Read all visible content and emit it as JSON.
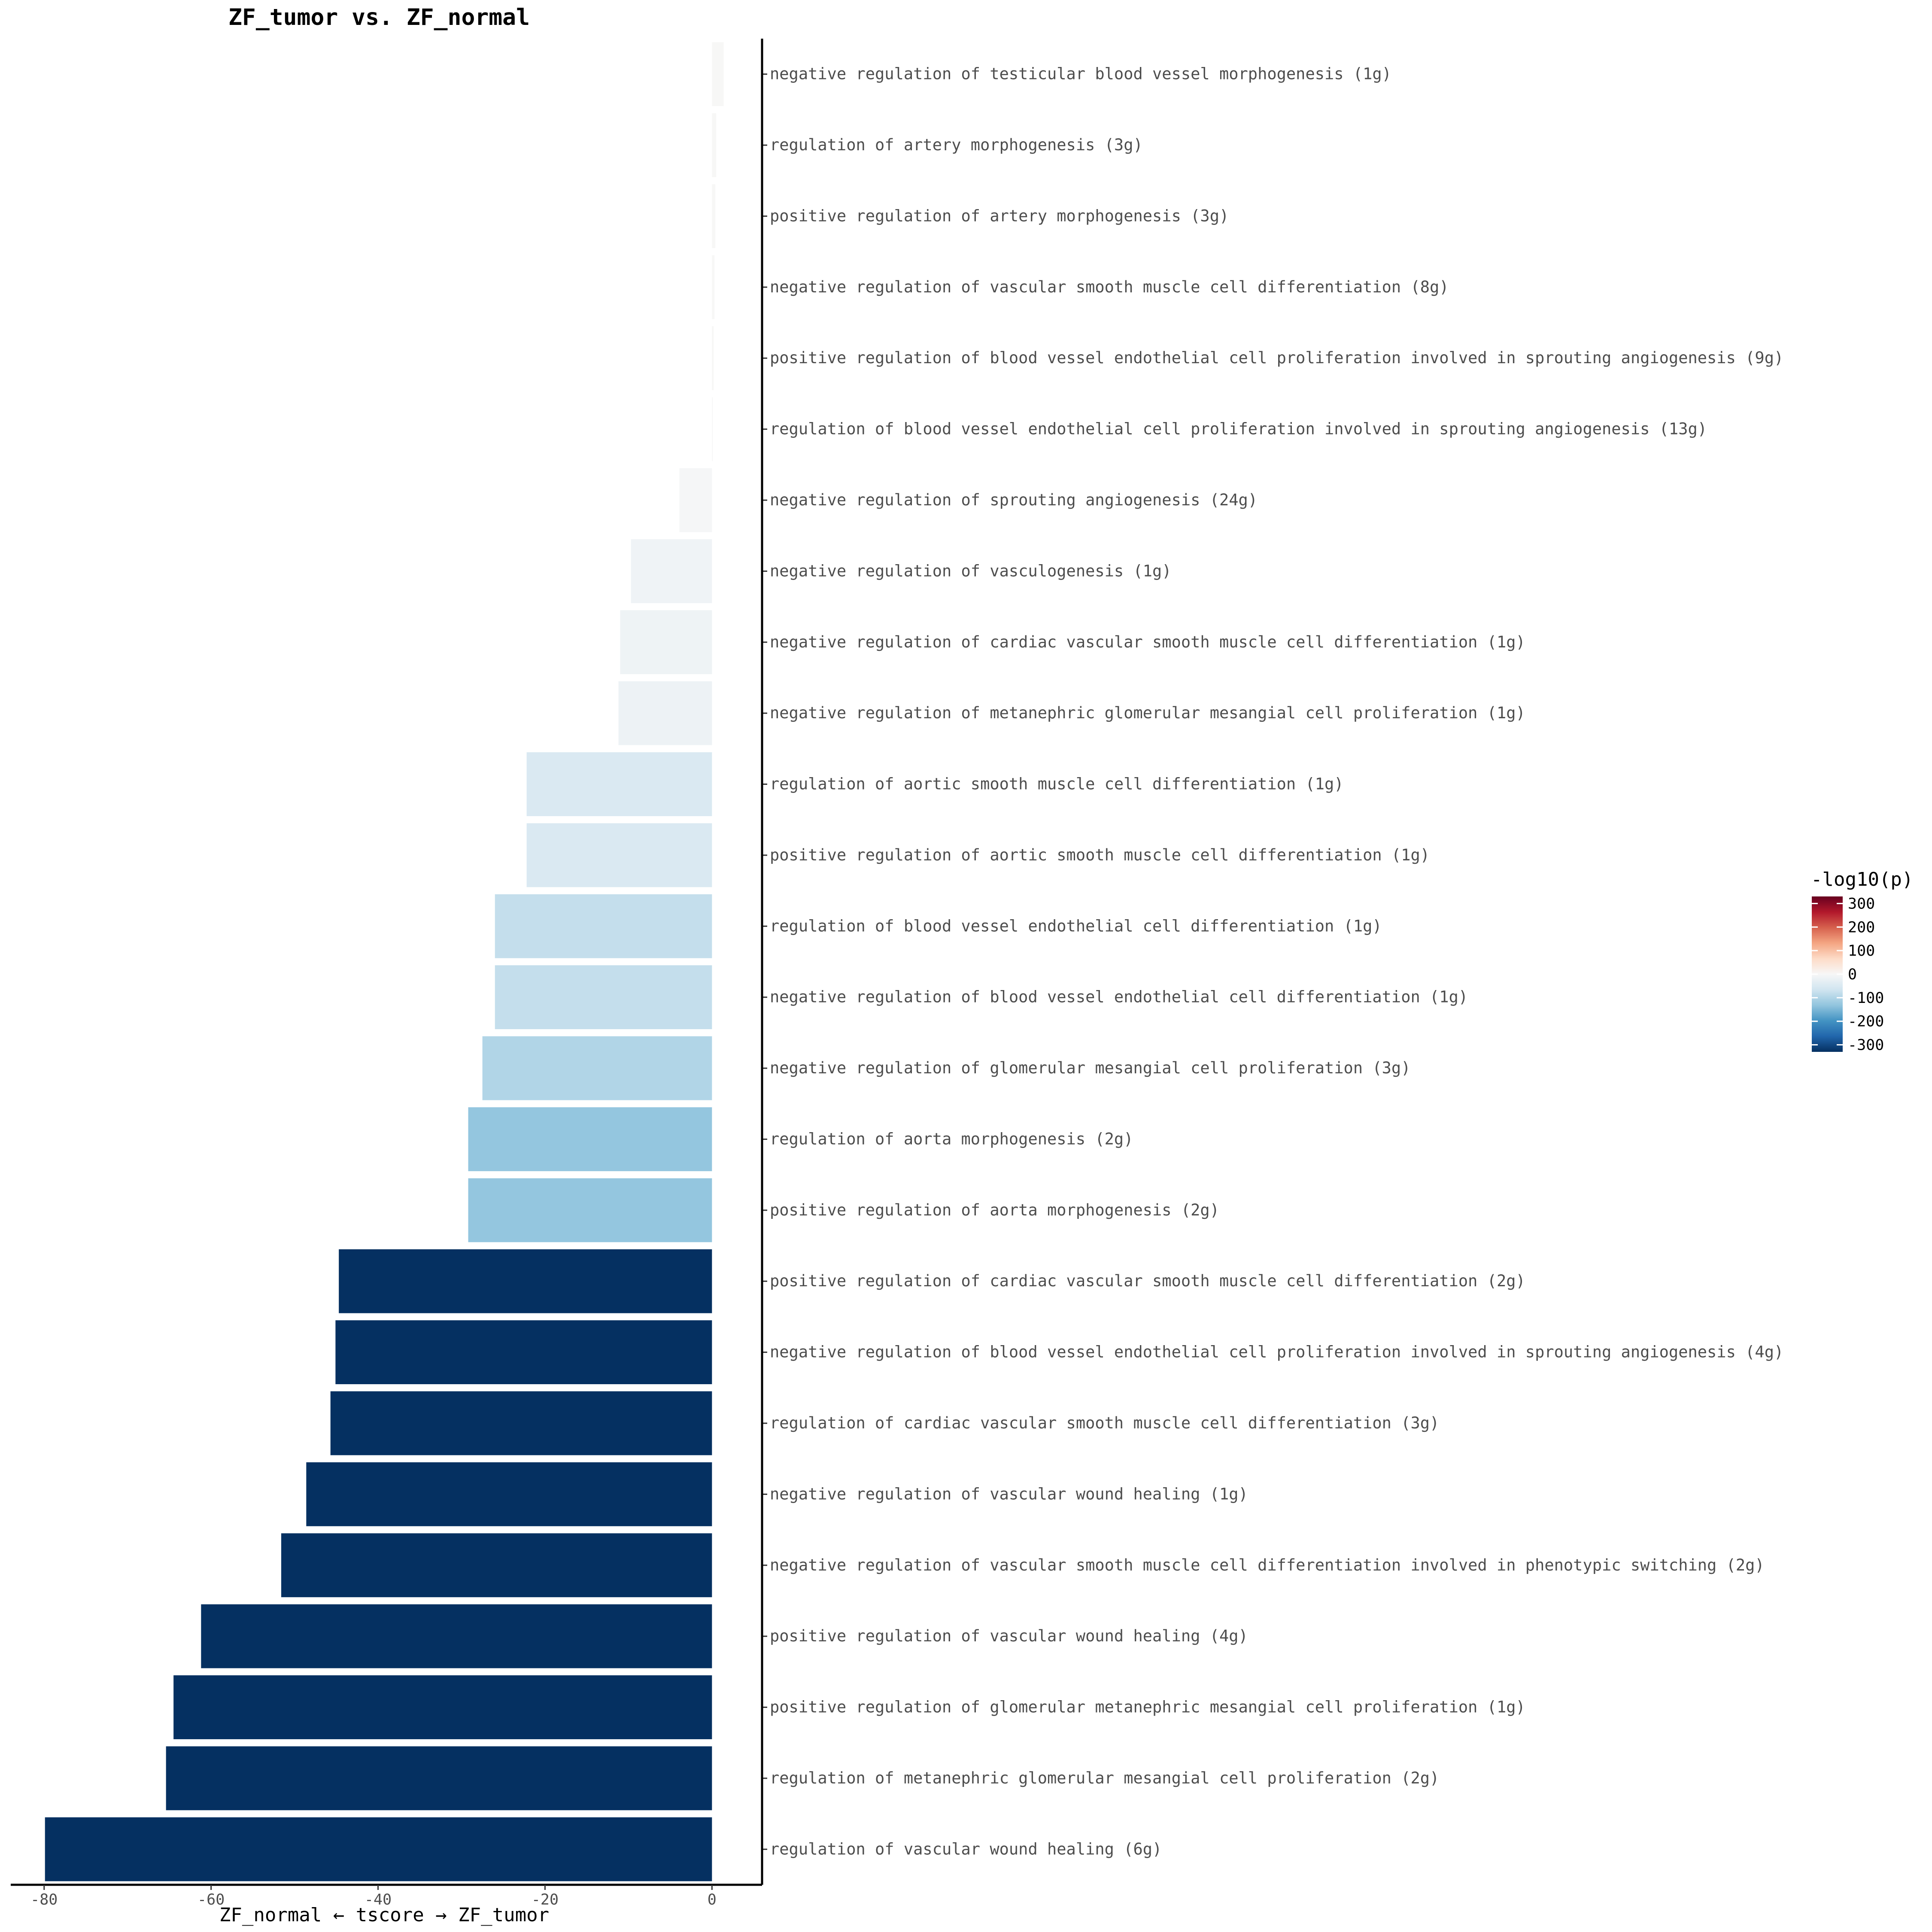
{
  "chart_data": {
    "type": "bar",
    "orientation": "horizontal",
    "title": "ZF_tumor vs. ZF_normal",
    "xlabel": "ZF_normal ← tscore → ZF_tumor",
    "ylabel": "",
    "xlim": [
      -84,
      6
    ],
    "xticks": [
      -80,
      -60,
      -40,
      -20,
      0
    ],
    "xtick_labels": [
      "-80",
      "-60",
      "-40",
      "-20",
      "0"
    ],
    "grid": false,
    "legend": {
      "title": "-log10(p)",
      "position": "right",
      "ticks": [
        300,
        200,
        100,
        0,
        -100,
        -200,
        -300
      ],
      "tick_labels": [
        "300",
        "200",
        "100",
        "0",
        "-100",
        "-200",
        "-300"
      ],
      "range": [
        -330,
        330
      ],
      "colors": [
        "#053061",
        "#2166ac",
        "#4393c3",
        "#92c5de",
        "#d1e5f0",
        "#f7f7f7",
        "#fddbc7",
        "#f4a582",
        "#d6604d",
        "#b2182b",
        "#67001f"
      ]
    },
    "categories": [
      "negative regulation of testicular blood vessel morphogenesis (1g)",
      "regulation of artery morphogenesis (3g)",
      "positive regulation of artery morphogenesis (3g)",
      "negative regulation of vascular smooth muscle cell differentiation (8g)",
      "positive regulation of blood vessel endothelial cell proliferation involved in sprouting angiogenesis (9g)",
      "regulation of blood vessel endothelial cell proliferation involved in sprouting angiogenesis (13g)",
      "negative regulation of sprouting angiogenesis (24g)",
      "negative regulation of vasculogenesis (1g)",
      "negative regulation of cardiac vascular smooth muscle cell differentiation (1g)",
      "negative regulation of metanephric glomerular mesangial cell proliferation (1g)",
      "regulation of aortic smooth muscle cell differentiation (1g)",
      "positive regulation of aortic smooth muscle cell differentiation (1g)",
      "regulation of blood vessel endothelial cell differentiation (1g)",
      "negative regulation of blood vessel endothelial cell differentiation (1g)",
      "negative regulation of glomerular mesangial cell proliferation (3g)",
      "regulation of aorta morphogenesis (2g)",
      "positive regulation of aorta morphogenesis (2g)",
      "positive regulation of cardiac vascular smooth muscle cell differentiation (2g)",
      "negative regulation of blood vessel endothelial cell proliferation involved in sprouting angiogenesis (4g)",
      "regulation of cardiac vascular smooth muscle cell differentiation (3g)",
      "negative regulation of vascular wound healing (1g)",
      "negative regulation of vascular smooth muscle cell differentiation involved in phenotypic switching (2g)",
      "positive regulation of vascular wound healing (4g)",
      "positive regulation of glomerular metanephric mesangial cell proliferation (1g)",
      "regulation of metanephric glomerular mesangial cell proliferation (2g)",
      "regulation of vascular wound healing (6g)"
    ],
    "values": [
      1.4,
      0.5,
      0.4,
      0.3,
      0.2,
      0.1,
      -3.9,
      -9.7,
      -11.0,
      -11.2,
      -22.2,
      -22.2,
      -26.0,
      -26.0,
      -27.5,
      -29.2,
      -29.2,
      -44.7,
      -45.1,
      -45.7,
      -48.6,
      -51.6,
      -61.2,
      -64.5,
      -65.4,
      -79.9
    ],
    "color_values": [
      1,
      1,
      1,
      1,
      1,
      0,
      -3,
      -14,
      -16,
      -17,
      -50,
      -50,
      -80,
      -80,
      -100,
      -130,
      -130,
      -330,
      -330,
      -330,
      -330,
      -330,
      -330,
      -330,
      -330,
      -330
    ]
  }
}
